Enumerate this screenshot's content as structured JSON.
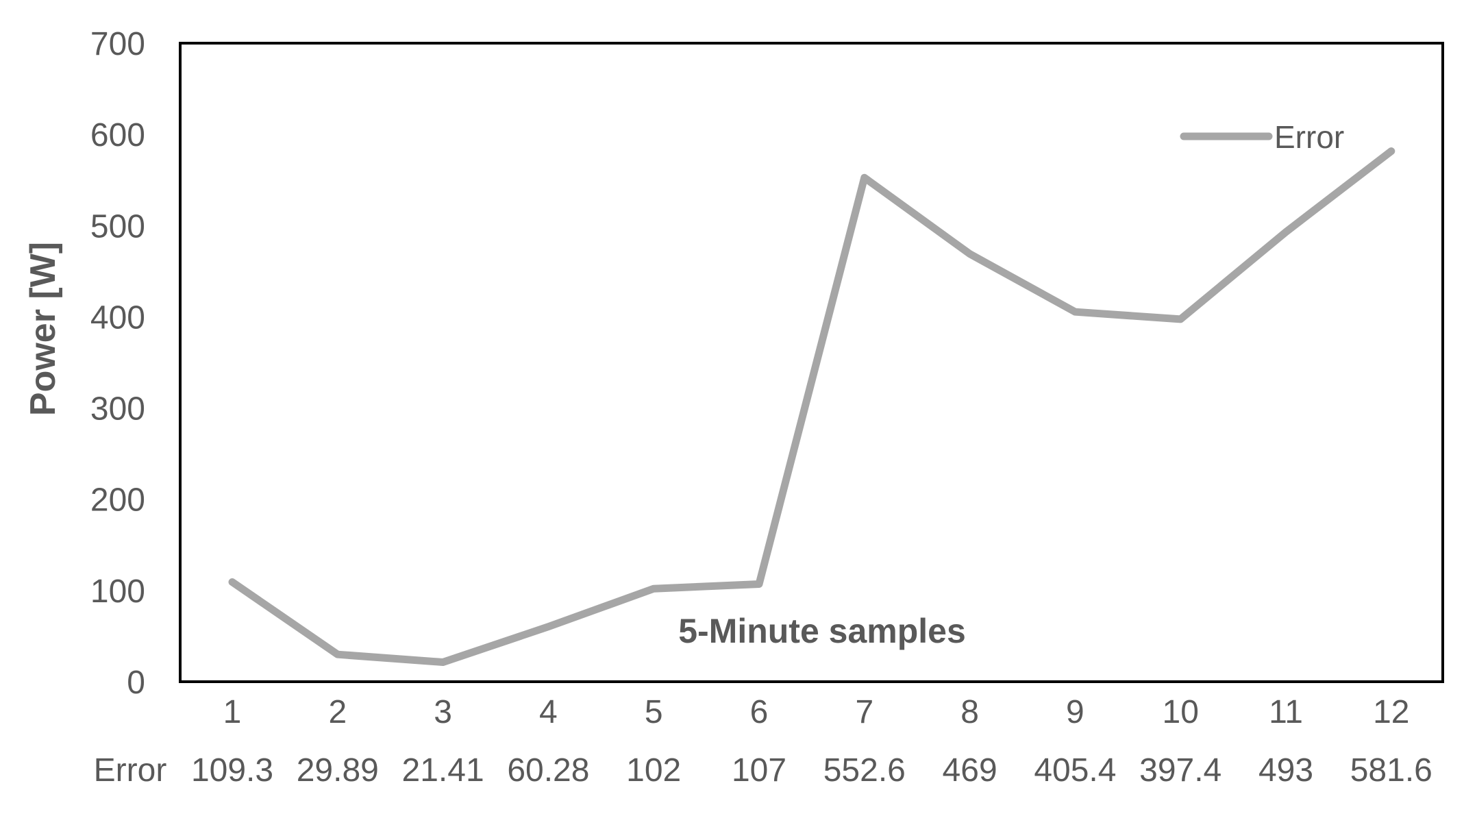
{
  "chart_data": {
    "type": "line",
    "title": "",
    "xlabel": "",
    "ylabel": "Power [W]",
    "categories": [
      "1",
      "2",
      "3",
      "4",
      "5",
      "6",
      "7",
      "8",
      "9",
      "10",
      "11",
      "12"
    ],
    "series": [
      {
        "name": "Error",
        "values": [
          109.3,
          29.89,
          21.41,
          60.28,
          102,
          107,
          552.6,
          469,
          405.4,
          397.4,
          493,
          581.6
        ],
        "display_values": [
          "109.3",
          "29.89",
          "21.41",
          "60.28",
          "102",
          "107",
          "552.6",
          "469",
          "405.4",
          "397.4",
          "493",
          "581.6"
        ],
        "color": "#a6a6a6"
      }
    ],
    "ylim": [
      0,
      700
    ],
    "yticks": [
      "0",
      "100",
      "200",
      "300",
      "400",
      "500",
      "600",
      "700"
    ],
    "annotation": "5-Minute samples",
    "legend_position": "top-right",
    "data_table": {
      "row_label": "Error"
    },
    "grid": false,
    "axis_color": "#000000",
    "text_color": "#595959"
  }
}
